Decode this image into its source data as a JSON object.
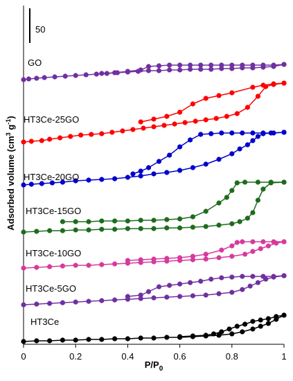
{
  "chart_data": {
    "type": "scatter",
    "xlabel": "P/P",
    "xlabel_subscript": "0",
    "ylabel": "Adsorbed volume (cm",
    "ylabel_sup1": "3",
    "ylabel_mid": " g",
    "ylabel_sup2": "-1",
    "ylabel_end": ")",
    "xlim": [
      0,
      1
    ],
    "xticks": [
      "0",
      "0.2",
      "0.4",
      "0.6",
      "0.8",
      "1"
    ],
    "scale_bar_label": "50",
    "y_ticks_shown": false,
    "grid": false,
    "series": [
      {
        "name": "GO",
        "color": "#7030a0",
        "adsorption": [
          [
            0.0,
            0
          ],
          [
            0.02,
            1
          ],
          [
            0.05,
            2
          ],
          [
            0.08,
            3
          ],
          [
            0.12,
            4
          ],
          [
            0.16,
            5
          ],
          [
            0.2,
            6
          ],
          [
            0.24,
            7
          ],
          [
            0.28,
            8
          ],
          [
            0.32,
            9
          ],
          [
            0.36,
            10
          ],
          [
            0.4,
            11
          ],
          [
            0.44,
            12
          ],
          [
            0.48,
            13
          ],
          [
            0.52,
            13
          ],
          [
            0.56,
            14
          ],
          [
            0.6,
            14
          ],
          [
            0.64,
            15
          ],
          [
            0.68,
            15
          ],
          [
            0.72,
            15
          ],
          [
            0.76,
            16
          ],
          [
            0.8,
            16
          ],
          [
            0.84,
            17
          ],
          [
            0.88,
            17
          ],
          [
            0.92,
            18
          ],
          [
            0.96,
            19
          ],
          [
            1.0,
            22
          ]
        ],
        "desorption": [
          [
            1.0,
            22
          ],
          [
            0.96,
            21
          ],
          [
            0.92,
            21
          ],
          [
            0.88,
            21
          ],
          [
            0.84,
            21
          ],
          [
            0.8,
            21
          ],
          [
            0.76,
            21
          ],
          [
            0.72,
            21
          ],
          [
            0.68,
            21
          ],
          [
            0.64,
            21
          ],
          [
            0.6,
            21
          ],
          [
            0.56,
            21
          ],
          [
            0.52,
            20
          ],
          [
            0.48,
            19
          ],
          [
            0.45,
            14
          ],
          [
            0.4,
            12
          ],
          [
            0.35,
            10
          ],
          [
            0.3,
            9
          ]
        ]
      },
      {
        "name": "HT3Ce-25GO",
        "color": "#ff0000",
        "adsorption": [
          [
            0.0,
            0
          ],
          [
            0.03,
            1
          ],
          [
            0.07,
            2
          ],
          [
            0.1,
            4
          ],
          [
            0.14,
            6
          ],
          [
            0.18,
            8
          ],
          [
            0.22,
            10
          ],
          [
            0.26,
            11
          ],
          [
            0.3,
            12
          ],
          [
            0.34,
            14
          ],
          [
            0.38,
            16
          ],
          [
            0.42,
            18
          ],
          [
            0.46,
            20
          ],
          [
            0.5,
            22
          ],
          [
            0.54,
            24
          ],
          [
            0.58,
            26
          ],
          [
            0.62,
            28
          ],
          [
            0.66,
            30
          ],
          [
            0.7,
            32
          ],
          [
            0.74,
            34
          ],
          [
            0.78,
            37
          ],
          [
            0.82,
            41
          ],
          [
            0.86,
            50
          ],
          [
            0.9,
            66
          ],
          [
            0.93,
            80
          ],
          [
            0.96,
            83
          ],
          [
            1.0,
            85
          ]
        ],
        "desorption": [
          [
            1.0,
            85
          ],
          [
            0.96,
            84
          ],
          [
            0.92,
            82
          ],
          [
            0.88,
            79
          ],
          [
            0.8,
            71
          ],
          [
            0.75,
            67
          ],
          [
            0.7,
            63
          ],
          [
            0.65,
            55
          ],
          [
            0.6,
            43
          ],
          [
            0.55,
            37
          ],
          [
            0.5,
            33
          ],
          [
            0.45,
            29
          ]
        ]
      },
      {
        "name": "HT3Ce-20GO",
        "color": "#0000cc",
        "adsorption": [
          [
            0.0,
            0
          ],
          [
            0.03,
            1
          ],
          [
            0.07,
            2
          ],
          [
            0.11,
            3
          ],
          [
            0.15,
            4
          ],
          [
            0.2,
            6
          ],
          [
            0.25,
            7
          ],
          [
            0.3,
            8
          ],
          [
            0.35,
            9
          ],
          [
            0.4,
            11
          ],
          [
            0.45,
            13
          ],
          [
            0.5,
            16
          ],
          [
            0.55,
            18
          ],
          [
            0.6,
            21
          ],
          [
            0.65,
            25
          ],
          [
            0.7,
            30
          ],
          [
            0.75,
            37
          ],
          [
            0.8,
            45
          ],
          [
            0.83,
            52
          ],
          [
            0.86,
            58
          ],
          [
            0.88,
            64
          ],
          [
            0.9,
            70
          ],
          [
            0.92,
            74
          ],
          [
            0.95,
            75
          ],
          [
            1.0,
            76
          ]
        ],
        "desorption": [
          [
            1.0,
            76
          ],
          [
            0.96,
            75
          ],
          [
            0.92,
            75
          ],
          [
            0.88,
            75
          ],
          [
            0.84,
            75
          ],
          [
            0.8,
            75
          ],
          [
            0.76,
            75
          ],
          [
            0.72,
            74
          ],
          [
            0.68,
            73
          ],
          [
            0.64,
            65
          ],
          [
            0.6,
            55
          ],
          [
            0.56,
            43
          ],
          [
            0.52,
            34
          ],
          [
            0.48,
            25
          ],
          [
            0.45,
            20
          ],
          [
            0.42,
            16
          ]
        ]
      },
      {
        "name": "HT3Ce-15GO",
        "color": "#1e6b1e",
        "adsorption": [
          [
            0.0,
            0
          ],
          [
            0.05,
            1
          ],
          [
            0.1,
            2
          ],
          [
            0.15,
            2
          ],
          [
            0.2,
            3
          ],
          [
            0.25,
            3
          ],
          [
            0.3,
            4
          ],
          [
            0.35,
            4
          ],
          [
            0.4,
            5
          ],
          [
            0.45,
            5
          ],
          [
            0.5,
            5
          ],
          [
            0.55,
            6
          ],
          [
            0.6,
            6
          ],
          [
            0.65,
            7
          ],
          [
            0.7,
            8
          ],
          [
            0.75,
            10
          ],
          [
            0.8,
            12
          ],
          [
            0.83,
            15
          ],
          [
            0.86,
            20
          ],
          [
            0.88,
            28
          ],
          [
            0.9,
            46
          ],
          [
            0.92,
            62
          ],
          [
            0.95,
            71
          ],
          [
            1.0,
            72
          ]
        ],
        "desorption": [
          [
            1.0,
            72
          ],
          [
            0.95,
            72
          ],
          [
            0.9,
            72
          ],
          [
            0.85,
            72
          ],
          [
            0.82,
            71
          ],
          [
            0.8,
            60
          ],
          [
            0.78,
            50
          ],
          [
            0.75,
            42
          ],
          [
            0.7,
            30
          ],
          [
            0.65,
            22
          ],
          [
            0.6,
            19
          ],
          [
            0.55,
            18
          ],
          [
            0.5,
            17
          ],
          [
            0.45,
            17
          ],
          [
            0.4,
            16
          ],
          [
            0.35,
            16
          ],
          [
            0.3,
            16
          ],
          [
            0.25,
            15
          ],
          [
            0.2,
            15
          ],
          [
            0.15,
            15
          ]
        ]
      },
      {
        "name": "HT3Ce-10GO",
        "color": "#d63a9c",
        "adsorption": [
          [
            0.0,
            0
          ],
          [
            0.05,
            1
          ],
          [
            0.1,
            2
          ],
          [
            0.15,
            3
          ],
          [
            0.2,
            4
          ],
          [
            0.25,
            4
          ],
          [
            0.3,
            5
          ],
          [
            0.35,
            6
          ],
          [
            0.4,
            7
          ],
          [
            0.45,
            8
          ],
          [
            0.5,
            9
          ],
          [
            0.55,
            10
          ],
          [
            0.6,
            11
          ],
          [
            0.65,
            12
          ],
          [
            0.7,
            13
          ],
          [
            0.75,
            15
          ],
          [
            0.8,
            17
          ],
          [
            0.85,
            20
          ],
          [
            0.88,
            24
          ],
          [
            0.91,
            28
          ],
          [
            0.94,
            32
          ],
          [
            0.97,
            36
          ],
          [
            1.0,
            38
          ]
        ],
        "desorption": [
          [
            1.0,
            38
          ],
          [
            0.96,
            38
          ],
          [
            0.92,
            38
          ],
          [
            0.88,
            38
          ],
          [
            0.84,
            38
          ],
          [
            0.82,
            37
          ],
          [
            0.8,
            32
          ],
          [
            0.76,
            26
          ],
          [
            0.7,
            20
          ],
          [
            0.65,
            17
          ],
          [
            0.6,
            15
          ],
          [
            0.55,
            14
          ],
          [
            0.5,
            13
          ],
          [
            0.45,
            12
          ],
          [
            0.4,
            11
          ]
        ]
      },
      {
        "name": "HT3Ce-5GO",
        "color": "#7030a0",
        "adsorption": [
          [
            0.0,
            0
          ],
          [
            0.05,
            1
          ],
          [
            0.1,
            2
          ],
          [
            0.15,
            3
          ],
          [
            0.2,
            4
          ],
          [
            0.25,
            5
          ],
          [
            0.3,
            6
          ],
          [
            0.35,
            7
          ],
          [
            0.4,
            8
          ],
          [
            0.45,
            9
          ],
          [
            0.5,
            10
          ],
          [
            0.55,
            11
          ],
          [
            0.6,
            12
          ],
          [
            0.65,
            13
          ],
          [
            0.7,
            14
          ],
          [
            0.75,
            16
          ],
          [
            0.8,
            18
          ],
          [
            0.84,
            22
          ],
          [
            0.87,
            27
          ],
          [
            0.9,
            32
          ],
          [
            0.93,
            37
          ],
          [
            0.96,
            40
          ],
          [
            1.0,
            42
          ]
        ],
        "desorption": [
          [
            1.0,
            42
          ],
          [
            0.96,
            41
          ],
          [
            0.92,
            41
          ],
          [
            0.88,
            41
          ],
          [
            0.84,
            41
          ],
          [
            0.8,
            40
          ],
          [
            0.76,
            39
          ],
          [
            0.72,
            37
          ],
          [
            0.68,
            34
          ],
          [
            0.64,
            32
          ],
          [
            0.6,
            30
          ],
          [
            0.56,
            28
          ],
          [
            0.52,
            26
          ],
          [
            0.48,
            19
          ],
          [
            0.45,
            14
          ],
          [
            0.4,
            12
          ]
        ]
      },
      {
        "name": "HT3Ce",
        "color": "#000000",
        "adsorption": [
          [
            0.0,
            0
          ],
          [
            0.05,
            1
          ],
          [
            0.1,
            1
          ],
          [
            0.15,
            2
          ],
          [
            0.2,
            2
          ],
          [
            0.25,
            3
          ],
          [
            0.3,
            3
          ],
          [
            0.35,
            4
          ],
          [
            0.4,
            4
          ],
          [
            0.45,
            5
          ],
          [
            0.5,
            5
          ],
          [
            0.55,
            6
          ],
          [
            0.6,
            6
          ],
          [
            0.65,
            7
          ],
          [
            0.7,
            8
          ],
          [
            0.75,
            9
          ],
          [
            0.8,
            11
          ],
          [
            0.84,
            14
          ],
          [
            0.88,
            18
          ],
          [
            0.91,
            22
          ],
          [
            0.94,
            26
          ],
          [
            0.97,
            32
          ],
          [
            1.0,
            38
          ]
        ],
        "desorption": [
          [
            1.0,
            38
          ],
          [
            0.97,
            36
          ],
          [
            0.94,
            33
          ],
          [
            0.91,
            31
          ],
          [
            0.88,
            29
          ],
          [
            0.85,
            25
          ],
          [
            0.82,
            22
          ],
          [
            0.79,
            18
          ],
          [
            0.76,
            14
          ],
          [
            0.73,
            11
          ],
          [
            0.7,
            9
          ],
          [
            0.65,
            8
          ],
          [
            0.6,
            7
          ]
        ]
      }
    ]
  }
}
